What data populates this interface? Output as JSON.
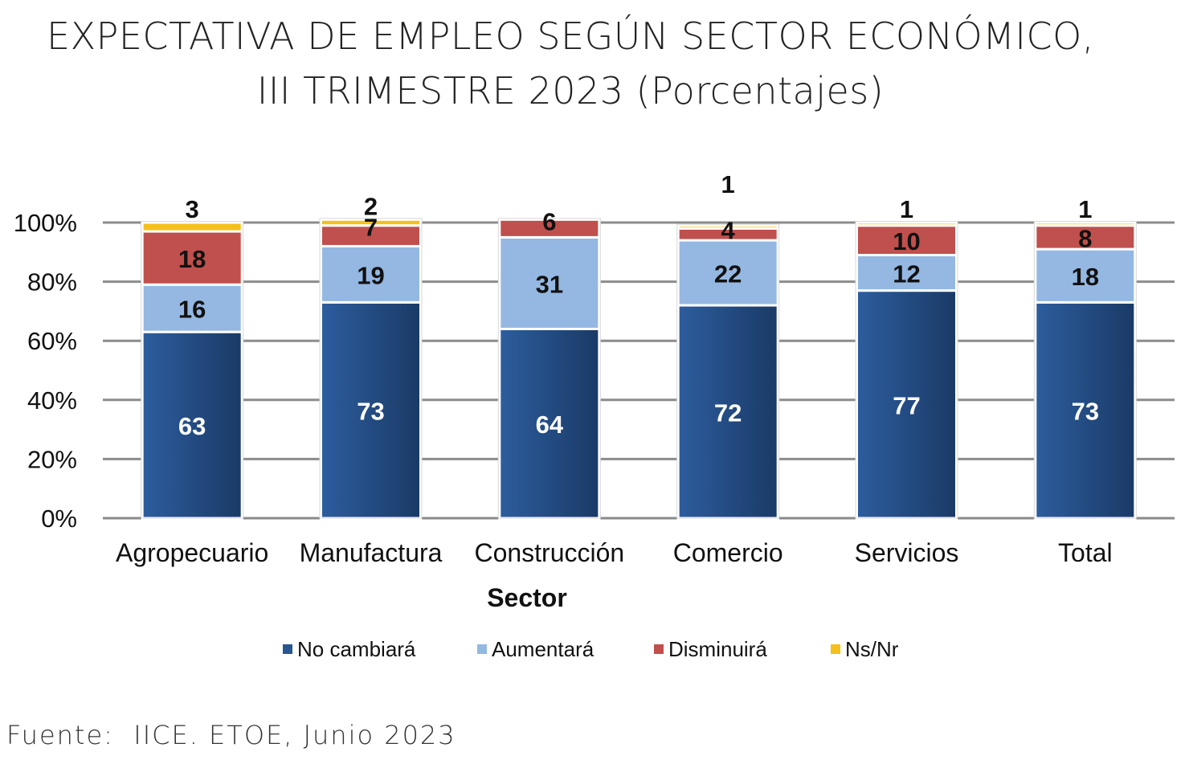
{
  "title_line1": "EXPECTATIVA DE EMPLEO SEGÚN SECTOR ECONÓMICO,",
  "title_line2": "III TRIMESTRE 2023 (Porcentajes)",
  "source": "Fuente:  IICE. ETOE, Junio 2023",
  "chart_data": {
    "type": "bar",
    "stacked": true,
    "categories": [
      "Agropecuario",
      "Manufactura",
      "Construcción",
      "Comercio",
      "Servicios",
      "Total"
    ],
    "series": [
      {
        "name": "No cambiará",
        "values": [
          63,
          73,
          64,
          72,
          77,
          73
        ],
        "color": "#2a5591"
      },
      {
        "name": "Aumentará",
        "values": [
          16,
          19,
          31,
          22,
          12,
          18
        ],
        "color": "#95b8e2"
      },
      {
        "name": "Disminuirá",
        "values": [
          18,
          7,
          6,
          4,
          10,
          8
        ],
        "color": "#c0504d"
      },
      {
        "name": "Ns/Nr",
        "values": [
          3,
          2,
          0,
          1,
          1,
          1
        ],
        "color": "#f5c01a"
      }
    ],
    "data_labels": [
      [
        "63",
        "73",
        "64",
        "72",
        "77",
        "73"
      ],
      [
        "16",
        "19",
        "31",
        "22",
        "12",
        "18"
      ],
      [
        "18",
        "7",
        "6",
        "4",
        "10",
        "8"
      ],
      [
        "3",
        "2",
        "",
        "1",
        "1",
        "1"
      ]
    ],
    "yticks": [
      "0%",
      "20%",
      "40%",
      "60%",
      "80%",
      "100%"
    ],
    "ylim": [
      0,
      100
    ],
    "xlabel": "Sector",
    "ylabel": "",
    "grid": true,
    "legend": "bottom"
  }
}
